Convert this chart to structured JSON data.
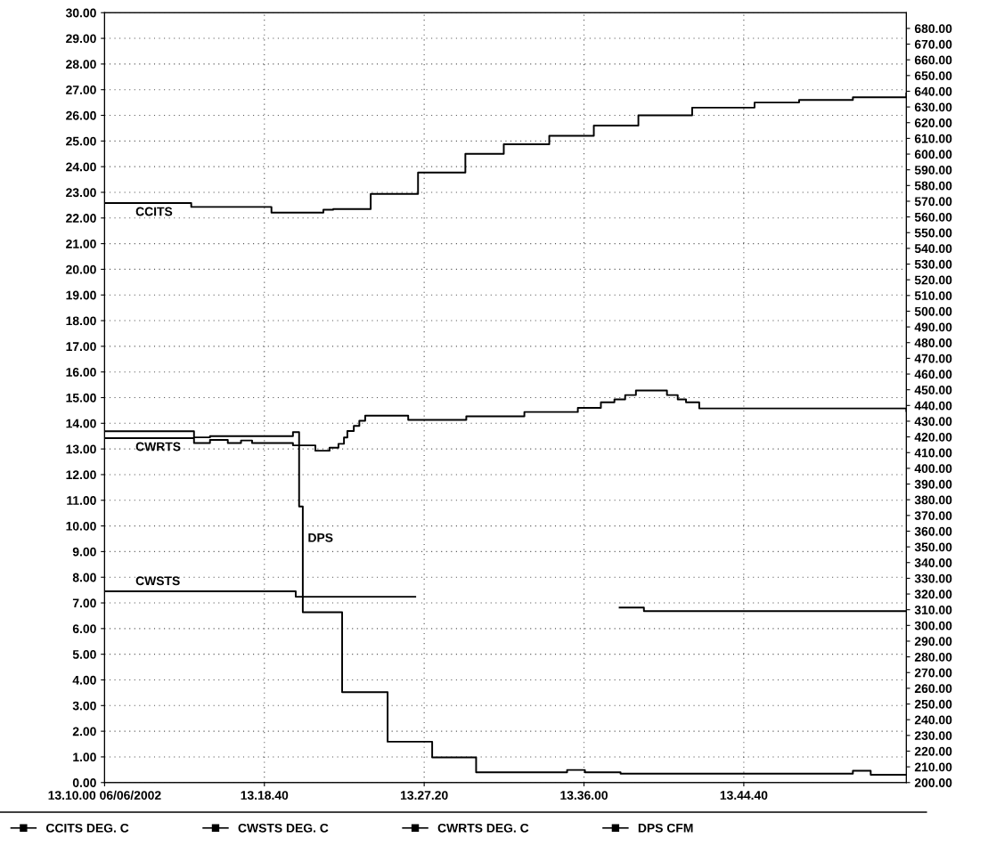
{
  "chart_data": {
    "type": "step",
    "xlim": [
      "2002-06-06T13:10:00",
      "2002-06-06T13:53:29"
    ],
    "xticks": [
      {
        "value": "2002-06-06T13:10:00",
        "label": "13.10.00 06/06/2002"
      },
      {
        "value": "2002-06-06T13:18:40",
        "label": "13.18.40"
      },
      {
        "value": "2002-06-06T13:27:20",
        "label": "13.27.20"
      },
      {
        "value": "2002-06-06T13:36:00",
        "label": "13.36.00"
      },
      {
        "value": "2002-06-06T13:44:40",
        "label": "13.44.40"
      }
    ],
    "ylim": [
      0,
      30
    ],
    "yticks": [
      {
        "value": 0,
        "label": "0.00"
      },
      {
        "value": 1,
        "label": "1.00"
      },
      {
        "value": 2,
        "label": "2.00"
      },
      {
        "value": 3,
        "label": "3.00"
      },
      {
        "value": 4,
        "label": "4.00"
      },
      {
        "value": 5,
        "label": "5.00"
      },
      {
        "value": 6,
        "label": "6.00"
      },
      {
        "value": 7,
        "label": "7.00"
      },
      {
        "value": 8,
        "label": "8.00"
      },
      {
        "value": 9,
        "label": "9.00"
      },
      {
        "value": 10,
        "label": "10.00"
      },
      {
        "value": 11,
        "label": "11.00"
      },
      {
        "value": 12,
        "label": "12.00"
      },
      {
        "value": 13,
        "label": "13.00"
      },
      {
        "value": 14,
        "label": "14.00"
      },
      {
        "value": 15,
        "label": "15.00"
      },
      {
        "value": 16,
        "label": "16.00"
      },
      {
        "value": 17,
        "label": "17.00"
      },
      {
        "value": 18,
        "label": "18.00"
      },
      {
        "value": 19,
        "label": "19.00"
      },
      {
        "value": 20,
        "label": "20.00"
      },
      {
        "value": 21,
        "label": "21.00"
      },
      {
        "value": 22,
        "label": "22.00"
      },
      {
        "value": 23,
        "label": "23.00"
      },
      {
        "value": 24,
        "label": "24.00"
      },
      {
        "value": 25,
        "label": "25.00"
      },
      {
        "value": 26,
        "label": "26.00"
      },
      {
        "value": 27,
        "label": "27.00"
      },
      {
        "value": 28,
        "label": "28.00"
      },
      {
        "value": 29,
        "label": "29.00"
      },
      {
        "value": 30,
        "label": "30.00"
      }
    ],
    "y2lim": [
      200,
      690
    ],
    "y2ticks": [
      {
        "value": 200,
        "label": "200.00"
      },
      {
        "value": 210,
        "label": "210.00"
      },
      {
        "value": 220,
        "label": "220.00"
      },
      {
        "value": 230,
        "label": "230.00"
      },
      {
        "value": 240,
        "label": "240.00"
      },
      {
        "value": 250,
        "label": "250.00"
      },
      {
        "value": 260,
        "label": "260.00"
      },
      {
        "value": 270,
        "label": "270.00"
      },
      {
        "value": 280,
        "label": "280.00"
      },
      {
        "value": 290,
        "label": "290.00"
      },
      {
        "value": 300,
        "label": "300.00"
      },
      {
        "value": 310,
        "label": "310.00"
      },
      {
        "value": 320,
        "label": "320.00"
      },
      {
        "value": 330,
        "label": "330.00"
      },
      {
        "value": 340,
        "label": "340.00"
      },
      {
        "value": 350,
        "label": "350.00"
      },
      {
        "value": 360,
        "label": "360.00"
      },
      {
        "value": 370,
        "label": "370.00"
      },
      {
        "value": 380,
        "label": "380.00"
      },
      {
        "value": 390,
        "label": "390.00"
      },
      {
        "value": 400,
        "label": "400.00"
      },
      {
        "value": 410,
        "label": "410.00"
      },
      {
        "value": 420,
        "label": "420.00"
      },
      {
        "value": 430,
        "label": "430.00"
      },
      {
        "value": 440,
        "label": "440.00"
      },
      {
        "value": 450,
        "label": "450.00"
      },
      {
        "value": 460,
        "label": "460.00"
      },
      {
        "value": 470,
        "label": "470.00"
      },
      {
        "value": 480,
        "label": "480.00"
      },
      {
        "value": 490,
        "label": "490.00"
      },
      {
        "value": 500,
        "label": "500.00"
      },
      {
        "value": 510,
        "label": "510.00"
      },
      {
        "value": 520,
        "label": "520.00"
      },
      {
        "value": 530,
        "label": "530.00"
      },
      {
        "value": 540,
        "label": "540.00"
      },
      {
        "value": 550,
        "label": "550.00"
      },
      {
        "value": 560,
        "label": "560.00"
      },
      {
        "value": 570,
        "label": "570.00"
      },
      {
        "value": 580,
        "label": "580.00"
      },
      {
        "value": 590,
        "label": "590.00"
      },
      {
        "value": 600,
        "label": "600.00"
      },
      {
        "value": 610,
        "label": "610.00"
      },
      {
        "value": 620,
        "label": "620.00"
      },
      {
        "value": 630,
        "label": "630.00"
      },
      {
        "value": 640,
        "label": "640.00"
      },
      {
        "value": 650,
        "label": "650.00"
      },
      {
        "value": 660,
        "label": "660.00"
      },
      {
        "value": 670,
        "label": "670.00"
      },
      {
        "value": 680,
        "label": "680.00"
      }
    ],
    "grid": true,
    "legend": "bottom",
    "series": [
      {
        "name": "CCITS DEG. C",
        "color": "#000000",
        "x": [
          "2002-06-06T13:10:00",
          "2002-06-06T13:14:42",
          "2002-06-06T13:19:03",
          "2002-06-06T13:21:52",
          "2002-06-06T13:22:24",
          "2002-06-06T13:24:26",
          "2002-06-06T13:27:00",
          "2002-06-06T13:29:34",
          "2002-06-06T13:31:39",
          "2002-06-06T13:34:07",
          "2002-06-06T13:36:32",
          "2002-06-06T13:38:57",
          "2002-06-06T13:41:52",
          "2002-06-06T13:45:15",
          "2002-06-06T13:47:40",
          "2002-06-06T13:50:35",
          "2002-06-06T13:53:29"
        ],
        "values": [
          22.58,
          22.43,
          22.21,
          22.32,
          22.35,
          22.94,
          23.77,
          24.5,
          24.87,
          25.2,
          25.6,
          26.0,
          26.3,
          26.5,
          26.6,
          26.7,
          26.85
        ]
      },
      {
        "name": "CWSTS DEG. C",
        "color": "#000000",
        "x": [
          "2002-06-06T13:10:00",
          "2002-06-06T13:20:22",
          "2002-06-06T13:26:51",
          "2002-06-06T13:37:56",
          "2002-06-06T13:39:15",
          "2002-06-06T13:53:29"
        ],
        "values": [
          7.45,
          7.24,
          null,
          6.82,
          6.68,
          6.68
        ]
      },
      {
        "name": "CWRTS DEG. C",
        "color": "#000000",
        "x": [
          "2002-06-06T13:10:00",
          "2002-06-06T13:14:51",
          "2002-06-06T13:15:43",
          "2002-06-06T13:16:41",
          "2002-06-06T13:17:24",
          "2002-06-06T13:18:00",
          "2002-06-06T13:20:13",
          "2002-06-06T13:21:26",
          "2002-06-06T13:22:12",
          "2002-06-06T13:22:41",
          "2002-06-06T13:22:59",
          "2002-06-06T13:23:10",
          "2002-06-06T13:23:31",
          "2002-06-06T13:23:49",
          "2002-06-06T13:24:08",
          "2002-06-06T13:26:28",
          "2002-06-06T13:29:37",
          "2002-06-06T13:32:46",
          "2002-06-06T13:35:40",
          "2002-06-06T13:36:55",
          "2002-06-06T13:37:39",
          "2002-06-06T13:38:14",
          "2002-06-06T13:38:49",
          "2002-06-06T13:40:30",
          "2002-06-06T13:41:05",
          "2002-06-06T13:41:32",
          "2002-06-06T13:42:15",
          "2002-06-06T13:53:29"
        ],
        "values": [
          13.42,
          13.23,
          13.35,
          13.23,
          13.33,
          13.23,
          13.14,
          12.93,
          13.05,
          13.2,
          13.45,
          13.7,
          13.9,
          14.1,
          14.3,
          14.13,
          14.27,
          14.44,
          14.6,
          14.82,
          14.93,
          15.1,
          15.28,
          15.1,
          14.93,
          14.82,
          14.58,
          14.48
        ]
      },
      {
        "name": "DPS CFM",
        "color": "#000000",
        "axis": "y2",
        "x": [
          "2002-06-06T13:10:00",
          "2002-06-06T13:14:51",
          "2002-06-06T13:15:43",
          "2002-06-06T13:20:13",
          "2002-06-06T13:20:33",
          "2002-06-06T13:20:45",
          "2002-06-06T13:22:53",
          "2002-06-06T13:25:21",
          "2002-06-06T13:27:46",
          "2002-06-06T13:30:09",
          "2002-06-06T13:35:05",
          "2002-06-06T13:36:03",
          "2002-06-06T13:37:59",
          "2002-06-06T13:50:35",
          "2002-06-06T13:51:33",
          "2002-06-06T13:53:29"
        ],
        "values": [
          423.6,
          419.7,
          420.5,
          423,
          375.7,
          308.4,
          257.5,
          226,
          216,
          206.5,
          208,
          206.5,
          205.7,
          207.5,
          205,
          205
        ]
      }
    ],
    "annotations": [
      {
        "text": "CCITS",
        "x": "2002-06-06T13:10:00",
        "y": 22.58
      },
      {
        "text": "CWRTS",
        "x": "2002-06-06T13:10:00",
        "y": 13.42
      },
      {
        "text": "DPS",
        "x": "2002-06-06T13:20:45",
        "y": 9.5
      },
      {
        "text": "CWSTS",
        "x": "2002-06-06T13:10:00",
        "y": 7.45
      }
    ]
  }
}
